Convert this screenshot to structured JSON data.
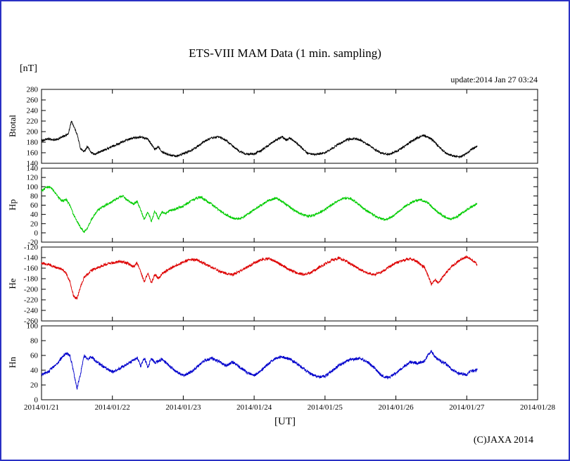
{
  "title": "ETS-VIII MAM Data (1 min. sampling)",
  "unit_label": "[nT]",
  "update_label": "update:2014 Jan 27 03:24",
  "xaxis_label": "[UT]",
  "copyright": "(C)JAXA 2014",
  "frame_color": "#2a31c4",
  "chart_data": {
    "type": "line",
    "title": "ETS-VIII MAM Data (1 min. sampling)",
    "ylabel_unit": "[nT]",
    "xlabel": "[UT]",
    "x_unit": "days since 2014/01/21 00:00 UT",
    "xlim": [
      0,
      7
    ],
    "x_tick_labels": [
      "2014/01/21",
      "2014/01/22",
      "2014/01/23",
      "2014/01/24",
      "2014/01/25",
      "2014/01/26",
      "2014/01/27",
      "2014/01/28"
    ],
    "grid": false,
    "legend": "none",
    "panels": [
      {
        "name": "Btotal",
        "label": "Btotal",
        "color": "#000000",
        "ylim": [
          140,
          280
        ],
        "ytick_step": 20,
        "noise": 2.0,
        "points": [
          [
            0,
            183
          ],
          [
            0.1,
            186
          ],
          [
            0.2,
            184
          ],
          [
            0.3,
            190
          ],
          [
            0.38,
            196
          ],
          [
            0.42,
            220
          ],
          [
            0.45,
            212
          ],
          [
            0.5,
            196
          ],
          [
            0.55,
            168
          ],
          [
            0.6,
            162
          ],
          [
            0.65,
            172
          ],
          [
            0.7,
            160
          ],
          [
            0.75,
            157
          ],
          [
            0.8,
            160
          ],
          [
            0.9,
            166
          ],
          [
            1.0,
            172
          ],
          [
            1.1,
            178
          ],
          [
            1.2,
            184
          ],
          [
            1.3,
            188
          ],
          [
            1.4,
            190
          ],
          [
            1.5,
            186
          ],
          [
            1.55,
            176
          ],
          [
            1.6,
            166
          ],
          [
            1.65,
            172
          ],
          [
            1.7,
            162
          ],
          [
            1.8,
            156
          ],
          [
            1.9,
            154
          ],
          [
            2.0,
            158
          ],
          [
            2.1,
            164
          ],
          [
            2.2,
            172
          ],
          [
            2.3,
            182
          ],
          [
            2.4,
            188
          ],
          [
            2.5,
            190
          ],
          [
            2.6,
            184
          ],
          [
            2.7,
            172
          ],
          [
            2.8,
            162
          ],
          [
            2.9,
            157
          ],
          [
            3.0,
            158
          ],
          [
            3.1,
            164
          ],
          [
            3.2,
            174
          ],
          [
            3.3,
            184
          ],
          [
            3.4,
            190
          ],
          [
            3.45,
            184
          ],
          [
            3.5,
            188
          ],
          [
            3.6,
            178
          ],
          [
            3.7,
            166
          ],
          [
            3.75,
            159
          ],
          [
            3.85,
            156
          ],
          [
            4.0,
            160
          ],
          [
            4.1,
            168
          ],
          [
            4.2,
            177
          ],
          [
            4.3,
            184
          ],
          [
            4.4,
            187
          ],
          [
            4.5,
            184
          ],
          [
            4.6,
            176
          ],
          [
            4.7,
            166
          ],
          [
            4.8,
            159
          ],
          [
            4.9,
            157
          ],
          [
            5.0,
            162
          ],
          [
            5.1,
            170
          ],
          [
            5.2,
            180
          ],
          [
            5.3,
            188
          ],
          [
            5.4,
            193
          ],
          [
            5.5,
            186
          ],
          [
            5.6,
            172
          ],
          [
            5.7,
            160
          ],
          [
            5.8,
            154
          ],
          [
            5.9,
            152
          ],
          [
            6.0,
            158
          ],
          [
            6.05,
            165
          ],
          [
            6.15,
            172
          ]
        ]
      },
      {
        "name": "Hp",
        "label": "Hp",
        "color": "#00cc00",
        "ylim": [
          -20,
          140
        ],
        "ytick_step": 20,
        "noise": 2.5,
        "points": [
          [
            0,
            90
          ],
          [
            0.05,
            97
          ],
          [
            0.1,
            100
          ],
          [
            0.15,
            95
          ],
          [
            0.2,
            85
          ],
          [
            0.25,
            75
          ],
          [
            0.3,
            68
          ],
          [
            0.35,
            72
          ],
          [
            0.4,
            60
          ],
          [
            0.45,
            40
          ],
          [
            0.5,
            25
          ],
          [
            0.55,
            12
          ],
          [
            0.6,
            2
          ],
          [
            0.65,
            10
          ],
          [
            0.7,
            28
          ],
          [
            0.75,
            40
          ],
          [
            0.8,
            50
          ],
          [
            0.9,
            60
          ],
          [
            1.0,
            68
          ],
          [
            1.1,
            78
          ],
          [
            1.15,
            80
          ],
          [
            1.2,
            72
          ],
          [
            1.3,
            62
          ],
          [
            1.35,
            68
          ],
          [
            1.4,
            50
          ],
          [
            1.45,
            28
          ],
          [
            1.5,
            45
          ],
          [
            1.55,
            25
          ],
          [
            1.6,
            48
          ],
          [
            1.65,
            30
          ],
          [
            1.7,
            45
          ],
          [
            1.75,
            42
          ],
          [
            1.8,
            48
          ],
          [
            1.9,
            52
          ],
          [
            2.0,
            58
          ],
          [
            2.1,
            68
          ],
          [
            2.2,
            76
          ],
          [
            2.25,
            78
          ],
          [
            2.3,
            72
          ],
          [
            2.4,
            62
          ],
          [
            2.5,
            50
          ],
          [
            2.6,
            40
          ],
          [
            2.7,
            32
          ],
          [
            2.8,
            30
          ],
          [
            2.9,
            40
          ],
          [
            3.0,
            50
          ],
          [
            3.1,
            60
          ],
          [
            3.2,
            70
          ],
          [
            3.3,
            75
          ],
          [
            3.35,
            72
          ],
          [
            3.45,
            62
          ],
          [
            3.55,
            50
          ],
          [
            3.65,
            42
          ],
          [
            3.75,
            36
          ],
          [
            3.85,
            38
          ],
          [
            3.95,
            46
          ],
          [
            4.05,
            56
          ],
          [
            4.15,
            66
          ],
          [
            4.25,
            74
          ],
          [
            4.35,
            75
          ],
          [
            4.45,
            65
          ],
          [
            4.55,
            52
          ],
          [
            4.65,
            42
          ],
          [
            4.75,
            33
          ],
          [
            4.85,
            28
          ],
          [
            4.95,
            35
          ],
          [
            5.05,
            48
          ],
          [
            5.15,
            60
          ],
          [
            5.25,
            68
          ],
          [
            5.35,
            72
          ],
          [
            5.45,
            65
          ],
          [
            5.55,
            50
          ],
          [
            5.65,
            38
          ],
          [
            5.75,
            30
          ],
          [
            5.85,
            33
          ],
          [
            5.95,
            45
          ],
          [
            6.05,
            55
          ],
          [
            6.15,
            63
          ]
        ]
      },
      {
        "name": "He",
        "label": "He",
        "color": "#dd0000",
        "ylim": [
          -260,
          -120
        ],
        "ytick_step": 20,
        "noise": 2.5,
        "points": [
          [
            0,
            -150
          ],
          [
            0.1,
            -153
          ],
          [
            0.2,
            -158
          ],
          [
            0.3,
            -163
          ],
          [
            0.35,
            -170
          ],
          [
            0.4,
            -185
          ],
          [
            0.45,
            -212
          ],
          [
            0.5,
            -218
          ],
          [
            0.55,
            -195
          ],
          [
            0.6,
            -178
          ],
          [
            0.7,
            -165
          ],
          [
            0.8,
            -158
          ],
          [
            0.9,
            -153
          ],
          [
            1.0,
            -150
          ],
          [
            1.1,
            -147
          ],
          [
            1.2,
            -150
          ],
          [
            1.3,
            -157
          ],
          [
            1.35,
            -150
          ],
          [
            1.4,
            -168
          ],
          [
            1.45,
            -185
          ],
          [
            1.5,
            -170
          ],
          [
            1.55,
            -188
          ],
          [
            1.6,
            -172
          ],
          [
            1.65,
            -180
          ],
          [
            1.7,
            -170
          ],
          [
            1.8,
            -162
          ],
          [
            1.9,
            -155
          ],
          [
            2.0,
            -148
          ],
          [
            2.1,
            -143
          ],
          [
            2.2,
            -145
          ],
          [
            2.3,
            -152
          ],
          [
            2.4,
            -158
          ],
          [
            2.5,
            -165
          ],
          [
            2.6,
            -170
          ],
          [
            2.7,
            -172
          ],
          [
            2.8,
            -166
          ],
          [
            2.9,
            -158
          ],
          [
            3.0,
            -150
          ],
          [
            3.1,
            -144
          ],
          [
            3.2,
            -142
          ],
          [
            3.3,
            -147
          ],
          [
            3.4,
            -155
          ],
          [
            3.5,
            -163
          ],
          [
            3.6,
            -169
          ],
          [
            3.7,
            -172
          ],
          [
            3.8,
            -168
          ],
          [
            3.9,
            -160
          ],
          [
            4.0,
            -152
          ],
          [
            4.1,
            -145
          ],
          [
            4.2,
            -141
          ],
          [
            4.3,
            -147
          ],
          [
            4.4,
            -155
          ],
          [
            4.5,
            -163
          ],
          [
            4.6,
            -169
          ],
          [
            4.7,
            -172
          ],
          [
            4.8,
            -167
          ],
          [
            4.9,
            -158
          ],
          [
            5.0,
            -150
          ],
          [
            5.1,
            -145
          ],
          [
            5.2,
            -142
          ],
          [
            5.3,
            -148
          ],
          [
            5.4,
            -158
          ],
          [
            5.45,
            -172
          ],
          [
            5.5,
            -190
          ],
          [
            5.55,
            -182
          ],
          [
            5.6,
            -188
          ],
          [
            5.7,
            -170
          ],
          [
            5.8,
            -155
          ],
          [
            5.9,
            -145
          ],
          [
            6.0,
            -138
          ],
          [
            6.05,
            -142
          ],
          [
            6.15,
            -153
          ]
        ]
      },
      {
        "name": "Hn",
        "label": "Hn",
        "color": "#0000cc",
        "ylim": [
          0,
          100
        ],
        "ytick_step": 20,
        "noise": 2.0,
        "points": [
          [
            0,
            34
          ],
          [
            0.1,
            38
          ],
          [
            0.2,
            48
          ],
          [
            0.3,
            58
          ],
          [
            0.35,
            63
          ],
          [
            0.4,
            60
          ],
          [
            0.45,
            40
          ],
          [
            0.5,
            15
          ],
          [
            0.55,
            35
          ],
          [
            0.6,
            60
          ],
          [
            0.65,
            55
          ],
          [
            0.7,
            58
          ],
          [
            0.8,
            50
          ],
          [
            0.9,
            43
          ],
          [
            1.0,
            38
          ],
          [
            1.1,
            42
          ],
          [
            1.2,
            48
          ],
          [
            1.3,
            53
          ],
          [
            1.35,
            57
          ],
          [
            1.4,
            45
          ],
          [
            1.45,
            57
          ],
          [
            1.5,
            44
          ],
          [
            1.55,
            56
          ],
          [
            1.6,
            50
          ],
          [
            1.7,
            55
          ],
          [
            1.8,
            46
          ],
          [
            1.9,
            38
          ],
          [
            2.0,
            33
          ],
          [
            2.1,
            37
          ],
          [
            2.2,
            45
          ],
          [
            2.3,
            53
          ],
          [
            2.4,
            56
          ],
          [
            2.5,
            52
          ],
          [
            2.6,
            46
          ],
          [
            2.7,
            51
          ],
          [
            2.8,
            44
          ],
          [
            2.9,
            37
          ],
          [
            3.0,
            33
          ],
          [
            3.1,
            40
          ],
          [
            3.2,
            49
          ],
          [
            3.3,
            56
          ],
          [
            3.4,
            58
          ],
          [
            3.5,
            55
          ],
          [
            3.6,
            49
          ],
          [
            3.7,
            42
          ],
          [
            3.8,
            35
          ],
          [
            3.9,
            31
          ],
          [
            4.0,
            32
          ],
          [
            4.1,
            39
          ],
          [
            4.2,
            47
          ],
          [
            4.3,
            52
          ],
          [
            4.4,
            55
          ],
          [
            4.5,
            56
          ],
          [
            4.6,
            51
          ],
          [
            4.7,
            43
          ],
          [
            4.8,
            32
          ],
          [
            4.9,
            30
          ],
          [
            5.0,
            36
          ],
          [
            5.1,
            44
          ],
          [
            5.2,
            51
          ],
          [
            5.3,
            50
          ],
          [
            5.4,
            52
          ],
          [
            5.45,
            60
          ],
          [
            5.5,
            66
          ],
          [
            5.55,
            58
          ],
          [
            5.6,
            54
          ],
          [
            5.7,
            49
          ],
          [
            5.8,
            40
          ],
          [
            5.9,
            35
          ],
          [
            6.0,
            34
          ],
          [
            6.05,
            38
          ],
          [
            6.15,
            41
          ]
        ]
      }
    ]
  }
}
